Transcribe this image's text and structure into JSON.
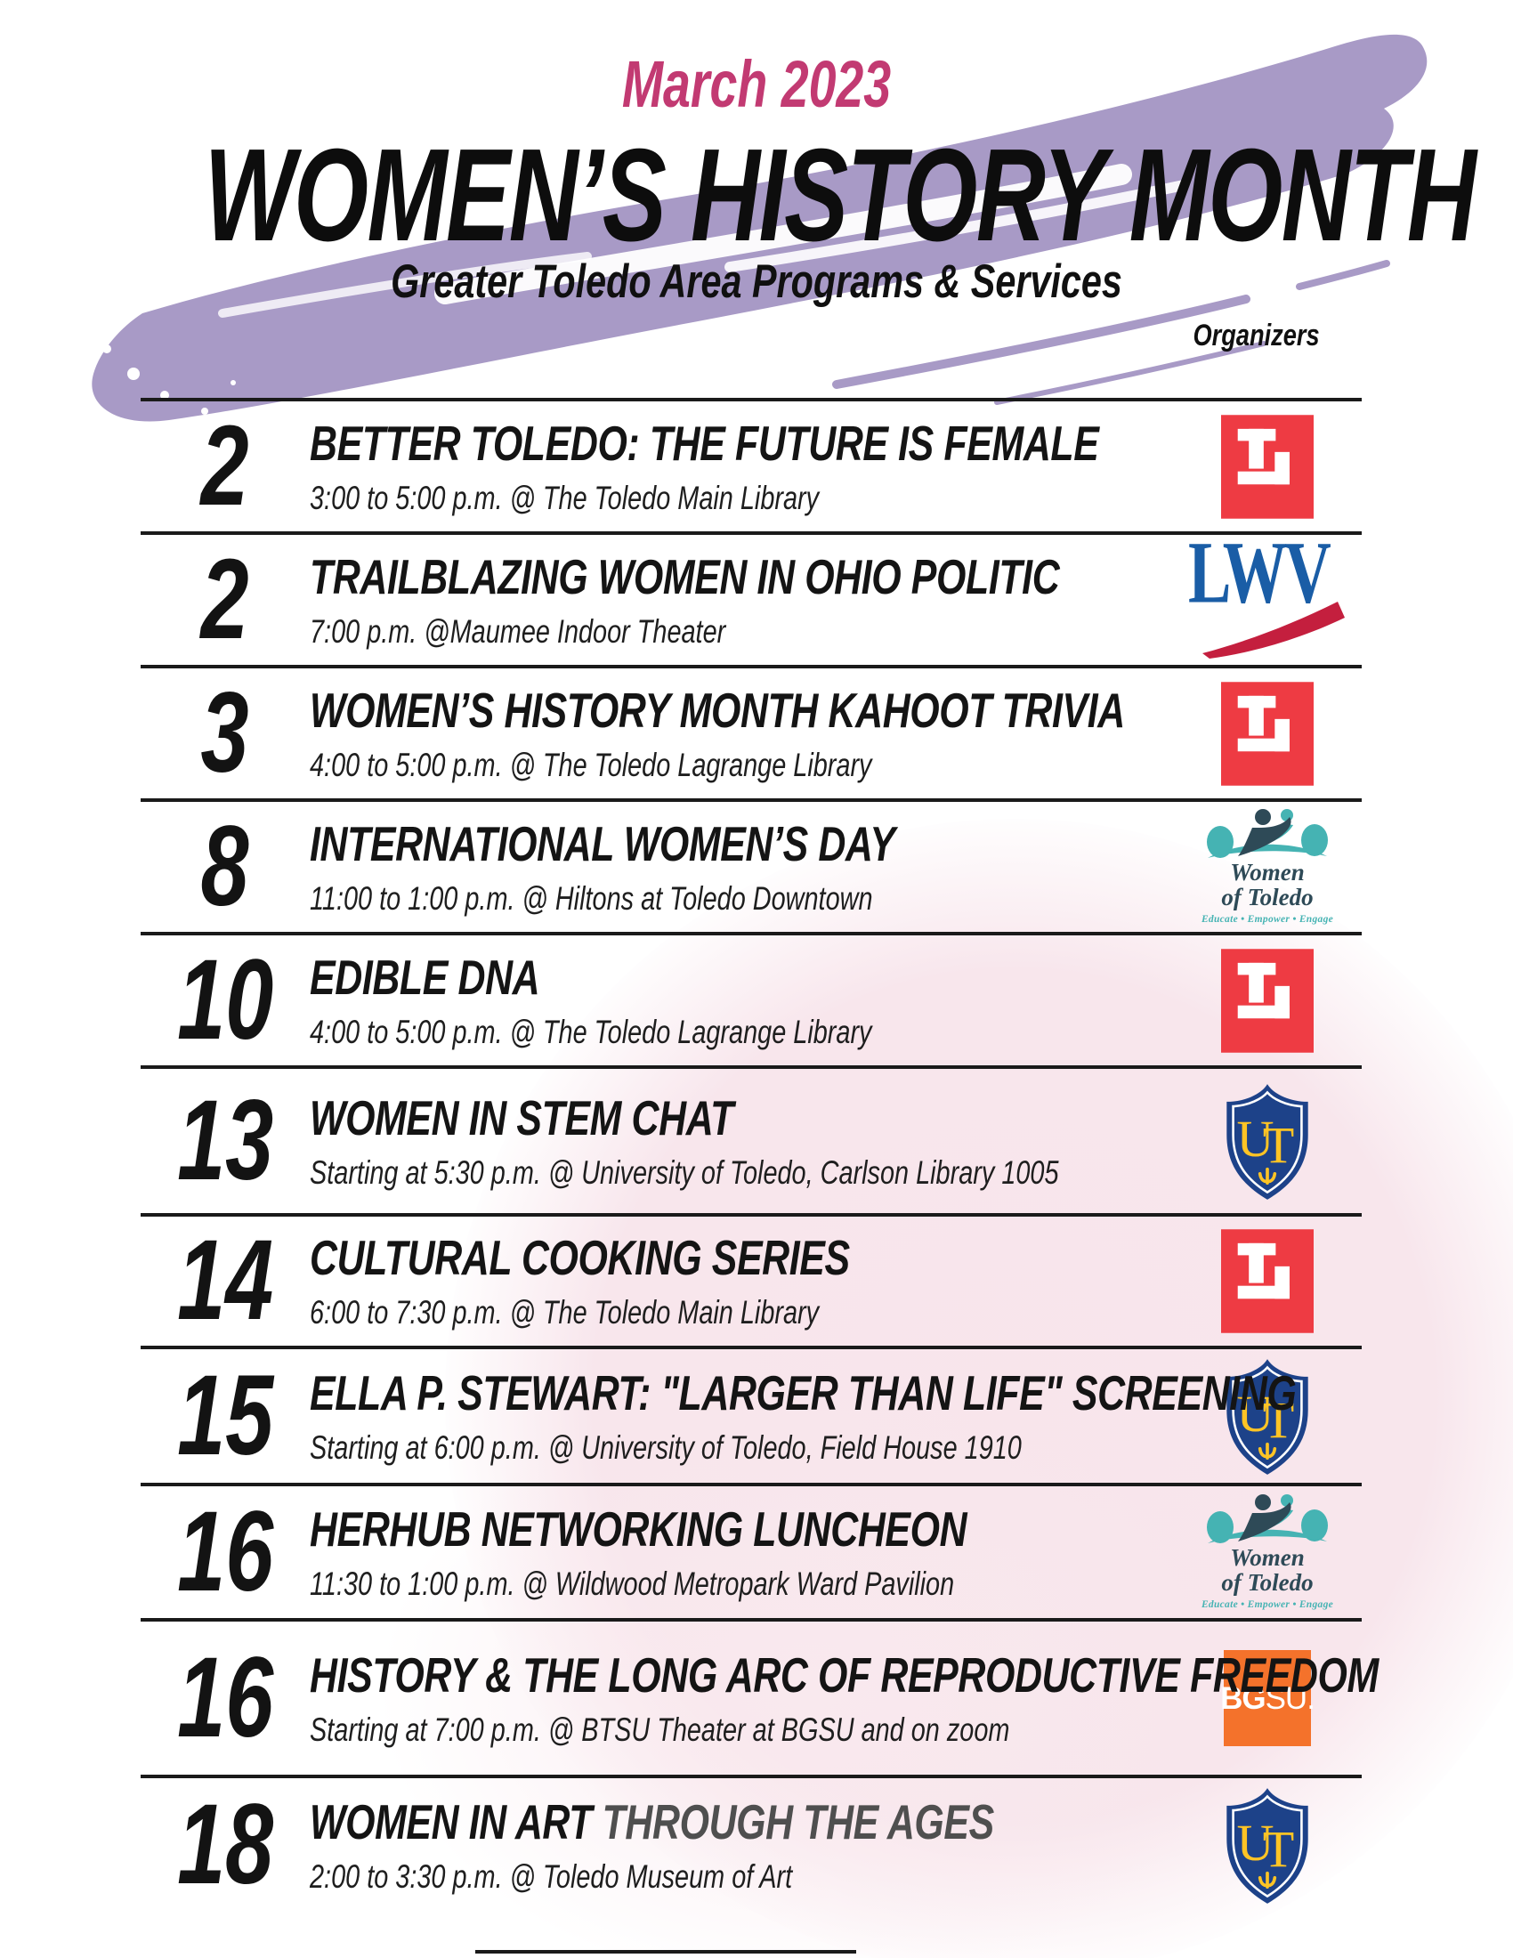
{
  "header": {
    "month_label": "March 2023",
    "title": "WOMEN’S HISTORY MONTH",
    "subtitle": "Greater Toledo Area Programs & Services",
    "organizers_label": "Organizers"
  },
  "colors": {
    "brush_purple": "#a89ac6",
    "month_pink": "#c23a72",
    "text_black": "#141414",
    "muted_title_gray": "#4f4f4f",
    "pink_wash": "#f7e2e9",
    "toledo_library_red": "#ee3b43",
    "lwv_blue": "#1a5da6",
    "lwv_red": "#c41f3e",
    "ut_navy": "#1d4289",
    "ut_gold": "#ffc425",
    "bgsu_orange": "#f4722b",
    "wot_teal": "#45b3b3",
    "wot_dark": "#2e4a57"
  },
  "logos": {
    "lwv": {
      "text": "LWV"
    },
    "women_of_toledo": {
      "line1": "Women",
      "line2": "of Toledo",
      "tagline": "Educate • Empower • Engage"
    },
    "ut": {
      "letter_u": "U",
      "letter_t": "T"
    },
    "bgsu": {
      "bold": "BG",
      "light": "SU."
    }
  },
  "events": [
    {
      "date": "2",
      "title": "BETTER TOLEDO: THE FUTURE IS FEMALE",
      "detail": "3:00 to 5:00 p.m. @ The Toledo Main Library",
      "organizer": "toledo-library"
    },
    {
      "date": "2",
      "title": "TRAILBLAZING WOMEN IN OHIO POLITIC",
      "detail": "7:00 p.m. @Maumee Indoor Theater",
      "organizer": "lwv"
    },
    {
      "date": "3",
      "title": "WOMEN’S HISTORY MONTH KAHOOT TRIVIA",
      "detail": "4:00 to 5:00 p.m. @ The Toledo Lagrange Library",
      "organizer": "toledo-library"
    },
    {
      "date": "8",
      "title": "INTERNATIONAL WOMEN’S DAY",
      "detail": "11:00 to 1:00 p.m. @ Hiltons at Toledo Downtown",
      "organizer": "women-of-toledo"
    },
    {
      "date": "10",
      "title": "EDIBLE DNA",
      "detail": "4:00 to 5:00 p.m. @ The Toledo Lagrange Library",
      "organizer": "toledo-library"
    },
    {
      "date": "13",
      "title": "WOMEN IN STEM CHAT",
      "detail": "Starting at 5:30 p.m. @ University of Toledo, Carlson Library 1005",
      "organizer": "ut"
    },
    {
      "date": "14",
      "title": "CULTURAL COOKING SERIES",
      "detail": "6:00 to 7:30 p.m. @ The Toledo Main Library",
      "organizer": "toledo-library"
    },
    {
      "date": "15",
      "title": "ELLA P. STEWART: \"LARGER THAN LIFE\" SCREENING",
      "detail": "Starting at 6:00 p.m. @ University of Toledo, Field House 1910",
      "organizer": "ut"
    },
    {
      "date": "16",
      "title": "HERHUB NETWORKING LUNCHEON",
      "detail": "11:30 to 1:00 p.m. @ Wildwood Metropark Ward Pavilion",
      "organizer": "women-of-toledo"
    },
    {
      "date": "16",
      "title": "HISTORY & THE LONG ARC OF REPRODUCTIVE FREEDOM",
      "detail": "Starting at 7:00 p.m. @ BTSU Theater at BGSU and on zoom",
      "organizer": "bgsu"
    },
    {
      "date": "18",
      "title": "WOMEN IN ART",
      "title_secondary": "THROUGH THE AGES",
      "detail": "2:00 to 3:30 p.m. @ Toledo Museum of Art",
      "organizer": "ut"
    }
  ]
}
